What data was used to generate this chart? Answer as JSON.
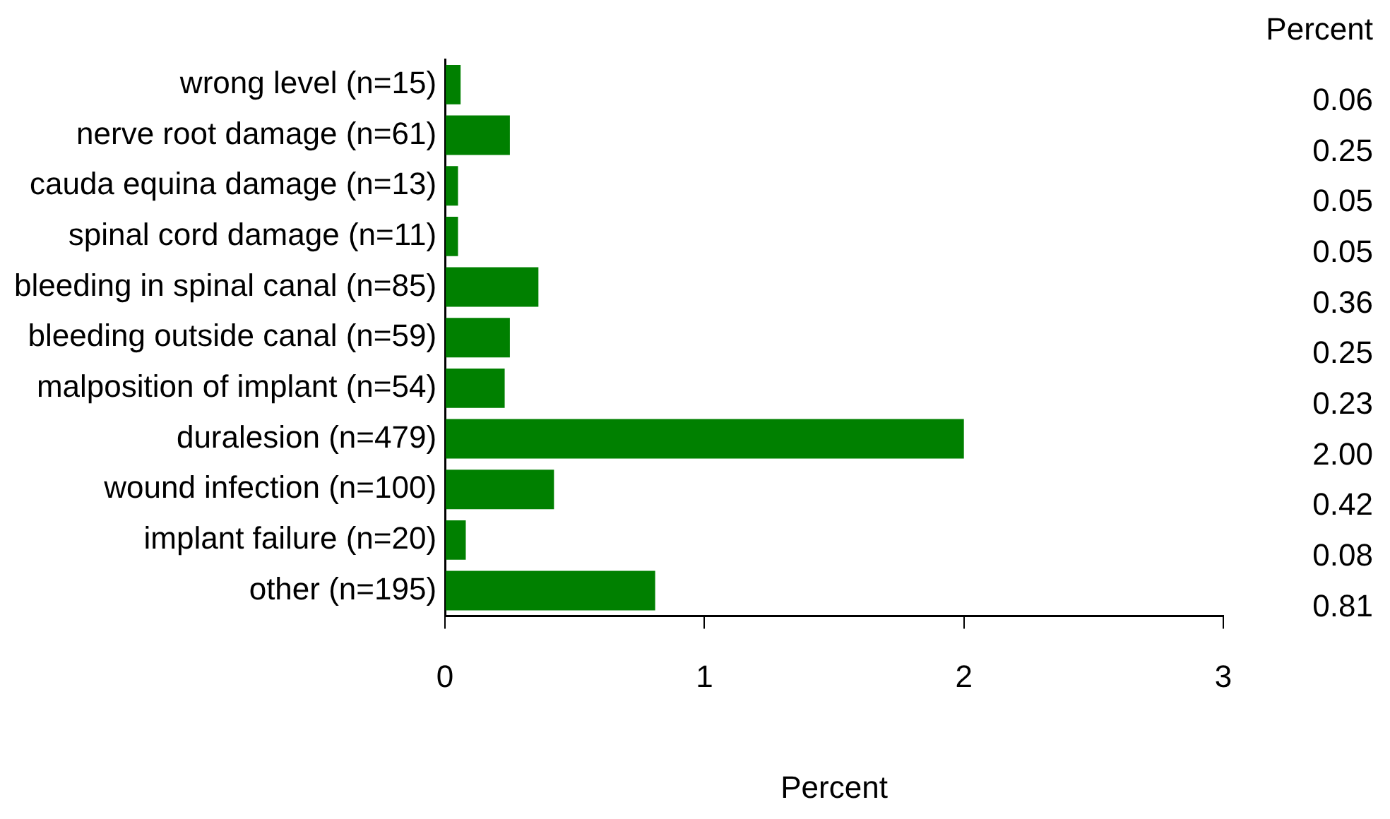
{
  "chart_data": {
    "type": "bar",
    "orientation": "horizontal",
    "xlabel": "Percent",
    "annotations": [
      "Percent"
    ],
    "categories": [
      "wrong level (n=15)",
      "nerve root damage (n=61)",
      "cauda equina damage (n=13)",
      "spinal cord damage (n=11)",
      "bleeding in spinal canal (n=85)",
      "bleeding outside canal (n=59)",
      "malposition of implant (n=54)",
      "duralesion (n=479)",
      "wound infection (n=100)",
      "implant failure (n=20)",
      "other (n=195)"
    ],
    "values": [
      0.06,
      0.25,
      0.05,
      0.05,
      0.36,
      0.25,
      0.23,
      2.0,
      0.42,
      0.08,
      0.81
    ],
    "value_labels": [
      "0.06",
      "0.25",
      "0.05",
      "0.05",
      "0.36",
      "0.25",
      "0.23",
      "2.00",
      "0.42",
      "0.08",
      "0.81"
    ],
    "color": "#008000",
    "xlim": [
      0,
      3
    ],
    "xticks": [
      0,
      1,
      2,
      3
    ],
    "grid": false,
    "legend": false
  }
}
